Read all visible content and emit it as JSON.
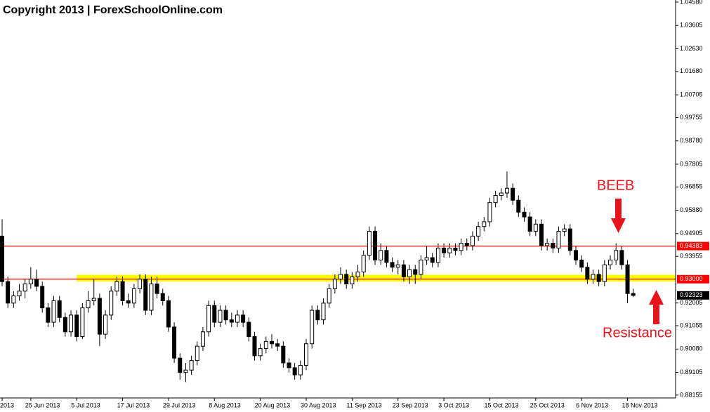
{
  "chart_data": {
    "type": "candlestick",
    "title": "Copyright 2013 | ForexSchoolOnline.com",
    "annotations": [
      "BEEB",
      "Resistance"
    ],
    "categories": [
      "2013",
      null,
      null,
      null,
      null,
      "25 Jun 2013",
      null,
      null,
      null,
      null,
      null,
      null,
      null,
      "5 Jul 2013",
      null,
      null,
      null,
      null,
      null,
      null,
      null,
      "17 Jul 2013",
      null,
      null,
      null,
      null,
      null,
      null,
      null,
      "29 Jul 2013",
      null,
      null,
      null,
      null,
      null,
      null,
      null,
      "8 Aug 2013",
      null,
      null,
      null,
      null,
      null,
      null,
      null,
      "20 Aug 2013",
      null,
      null,
      null,
      null,
      null,
      null,
      null,
      "30 Aug 2013",
      null,
      null,
      null,
      null,
      null,
      null,
      null,
      "11 Sep 2013",
      null,
      null,
      null,
      null,
      null,
      null,
      null,
      "23 Sep 2013",
      null,
      null,
      null,
      null,
      null,
      null,
      null,
      "3 Oct 2013",
      null,
      null,
      null,
      null,
      null,
      null,
      null,
      "15 Oct 2013",
      null,
      null,
      null,
      null,
      null,
      null,
      null,
      "25 Oct 2013",
      null,
      null,
      null,
      null,
      null,
      null,
      null,
      "6 Nov 2013",
      null,
      null,
      null,
      null,
      null,
      null,
      null,
      "18 Nov 2013",
      null
    ],
    "ohlc": [
      [
        0.948,
        0.955,
        0.927,
        0.929
      ],
      [
        0.929,
        0.931,
        0.918,
        0.92
      ],
      [
        0.92,
        0.925,
        0.918,
        0.923
      ],
      [
        0.923,
        0.928,
        0.921,
        0.925
      ],
      [
        0.925,
        0.93,
        0.922,
        0.928
      ],
      [
        0.928,
        0.935,
        0.926,
        0.93
      ],
      [
        0.93,
        0.934,
        0.925,
        0.927
      ],
      [
        0.927,
        0.929,
        0.916,
        0.918
      ],
      [
        0.918,
        0.92,
        0.91,
        0.912
      ],
      [
        0.912,
        0.923,
        0.91,
        0.921
      ],
      [
        0.921,
        0.923,
        0.912,
        0.914
      ],
      [
        0.914,
        0.916,
        0.906,
        0.908
      ],
      [
        0.908,
        0.917,
        0.906,
        0.915
      ],
      [
        0.915,
        0.917,
        0.904,
        0.906
      ],
      [
        0.906,
        0.92,
        0.905,
        0.918
      ],
      [
        0.918,
        0.925,
        0.916,
        0.921
      ],
      [
        0.921,
        0.93,
        0.919,
        0.922
      ],
      [
        0.922,
        0.924,
        0.902,
        0.907
      ],
      [
        0.907,
        0.917,
        0.905,
        0.915
      ],
      [
        0.915,
        0.927,
        0.913,
        0.925
      ],
      [
        0.925,
        0.931,
        0.923,
        0.929
      ],
      [
        0.929,
        0.931,
        0.919,
        0.921
      ],
      [
        0.921,
        0.924,
        0.918,
        0.92
      ],
      [
        0.92,
        0.928,
        0.918,
        0.926
      ],
      [
        0.926,
        0.932,
        0.924,
        0.93
      ],
      [
        0.93,
        0.932,
        0.915,
        0.917
      ],
      [
        0.917,
        0.931,
        0.915,
        0.928
      ],
      [
        0.928,
        0.931,
        0.922,
        0.924
      ],
      [
        0.924,
        0.926,
        0.919,
        0.921
      ],
      [
        0.921,
        0.923,
        0.908,
        0.91
      ],
      [
        0.91,
        0.912,
        0.895,
        0.897
      ],
      [
        0.897,
        0.899,
        0.888,
        0.891
      ],
      [
        0.891,
        0.895,
        0.887,
        0.892
      ],
      [
        0.892,
        0.898,
        0.89,
        0.896
      ],
      [
        0.896,
        0.904,
        0.894,
        0.902
      ],
      [
        0.902,
        0.91,
        0.9,
        0.908
      ],
      [
        0.908,
        0.921,
        0.906,
        0.919
      ],
      [
        0.919,
        0.921,
        0.91,
        0.912
      ],
      [
        0.912,
        0.919,
        0.91,
        0.917
      ],
      [
        0.917,
        0.919,
        0.911,
        0.913
      ],
      [
        0.913,
        0.916,
        0.91,
        0.912
      ],
      [
        0.912,
        0.917,
        0.91,
        0.915
      ],
      [
        0.915,
        0.917,
        0.91,
        0.912
      ],
      [
        0.912,
        0.914,
        0.904,
        0.906
      ],
      [
        0.906,
        0.908,
        0.896,
        0.898
      ],
      [
        0.898,
        0.903,
        0.896,
        0.901
      ],
      [
        0.901,
        0.906,
        0.899,
        0.904
      ],
      [
        0.904,
        0.907,
        0.901,
        0.903
      ],
      [
        0.903,
        0.905,
        0.9,
        0.902
      ],
      [
        0.902,
        0.904,
        0.893,
        0.895
      ],
      [
        0.895,
        0.897,
        0.891,
        0.893
      ],
      [
        0.893,
        0.895,
        0.888,
        0.89
      ],
      [
        0.89,
        0.896,
        0.888,
        0.894
      ],
      [
        0.894,
        0.905,
        0.892,
        0.903
      ],
      [
        0.903,
        0.919,
        0.901,
        0.917
      ],
      [
        0.917,
        0.919,
        0.911,
        0.913
      ],
      [
        0.913,
        0.922,
        0.911,
        0.92
      ],
      [
        0.92,
        0.928,
        0.918,
        0.926
      ],
      [
        0.926,
        0.932,
        0.924,
        0.93
      ],
      [
        0.93,
        0.935,
        0.928,
        0.932
      ],
      [
        0.932,
        0.934,
        0.926,
        0.928
      ],
      [
        0.928,
        0.933,
        0.926,
        0.931
      ],
      [
        0.931,
        0.936,
        0.929,
        0.933
      ],
      [
        0.933,
        0.942,
        0.931,
        0.94
      ],
      [
        0.94,
        0.952,
        0.938,
        0.95
      ],
      [
        0.95,
        0.952,
        0.936,
        0.938
      ],
      [
        0.938,
        0.945,
        0.936,
        0.942
      ],
      [
        0.942,
        0.944,
        0.935,
        0.937
      ],
      [
        0.937,
        0.939,
        0.933,
        0.935
      ],
      [
        0.935,
        0.938,
        0.932,
        0.936
      ],
      [
        0.936,
        0.938,
        0.929,
        0.931
      ],
      [
        0.931,
        0.936,
        0.928,
        0.934
      ],
      [
        0.934,
        0.936,
        0.928,
        0.932
      ],
      [
        0.932,
        0.94,
        0.93,
        0.938
      ],
      [
        0.938,
        0.944,
        0.936,
        0.939
      ],
      [
        0.939,
        0.941,
        0.935,
        0.937
      ],
      [
        0.937,
        0.945,
        0.935,
        0.943
      ],
      [
        0.943,
        0.945,
        0.939,
        0.941
      ],
      [
        0.941,
        0.945,
        0.939,
        0.943
      ],
      [
        0.943,
        0.945,
        0.94,
        0.942
      ],
      [
        0.942,
        0.947,
        0.94,
        0.945
      ],
      [
        0.945,
        0.947,
        0.942,
        0.944
      ],
      [
        0.944,
        0.95,
        0.942,
        0.948
      ],
      [
        0.948,
        0.954,
        0.946,
        0.952
      ],
      [
        0.952,
        0.956,
        0.95,
        0.954
      ],
      [
        0.954,
        0.964,
        0.952,
        0.962
      ],
      [
        0.962,
        0.967,
        0.96,
        0.965
      ],
      [
        0.965,
        0.968,
        0.963,
        0.966
      ],
      [
        0.966,
        0.975,
        0.964,
        0.968
      ],
      [
        0.968,
        0.97,
        0.961,
        0.963
      ],
      [
        0.963,
        0.965,
        0.956,
        0.958
      ],
      [
        0.958,
        0.96,
        0.954,
        0.956
      ],
      [
        0.956,
        0.958,
        0.948,
        0.95
      ],
      [
        0.95,
        0.955,
        0.948,
        0.953
      ],
      [
        0.953,
        0.955,
        0.942,
        0.944
      ],
      [
        0.944,
        0.947,
        0.942,
        0.945
      ],
      [
        0.945,
        0.947,
        0.941,
        0.943
      ],
      [
        0.943,
        0.952,
        0.941,
        0.95
      ],
      [
        0.95,
        0.953,
        0.948,
        0.951
      ],
      [
        0.951,
        0.953,
        0.94,
        0.942
      ],
      [
        0.942,
        0.944,
        0.936,
        0.938
      ],
      [
        0.938,
        0.94,
        0.933,
        0.935
      ],
      [
        0.935,
        0.937,
        0.928,
        0.93
      ],
      [
        0.93,
        0.934,
        0.928,
        0.932
      ],
      [
        0.932,
        0.934,
        0.927,
        0.929
      ],
      [
        0.929,
        0.938,
        0.927,
        0.936
      ],
      [
        0.936,
        0.94,
        0.934,
        0.938
      ],
      [
        0.938,
        0.945,
        0.936,
        0.942
      ],
      [
        0.942,
        0.944,
        0.934,
        0.936
      ],
      [
        0.936,
        0.938,
        0.92,
        0.924
      ],
      [
        0.924,
        0.926,
        0.9225,
        0.9232
      ]
    ],
    "ylim": [
      0.88035,
      1.04668
    ],
    "yticks": [
      {
        "value": 1.0458,
        "label": "1.04580"
      },
      1.03605,
      {
        "value": 1.0263,
        "label": "1.02630"
      },
      {
        "value": 1.0168,
        "label": "1.01680"
      },
      1.00705,
      0.99755,
      {
        "value": 0.9878,
        "label": "0.98780"
      },
      0.97805,
      0.96855,
      {
        "value": 0.9588,
        "label": "0.95880"
      },
      0.94905,
      0.93955,
      0.92005,
      0.91055,
      {
        "value": 0.9008,
        "label": "0.90080"
      },
      0.89105,
      0.88155
    ],
    "levels": [
      0.94383,
      {
        "value": 0.93,
        "label": "0.93000"
      }
    ],
    "level_color": "#ff0000",
    "zone": [
      0.929,
      0.9318
    ],
    "zone_color": "#ffff00",
    "last_price": 0.92323,
    "grid": false
  }
}
